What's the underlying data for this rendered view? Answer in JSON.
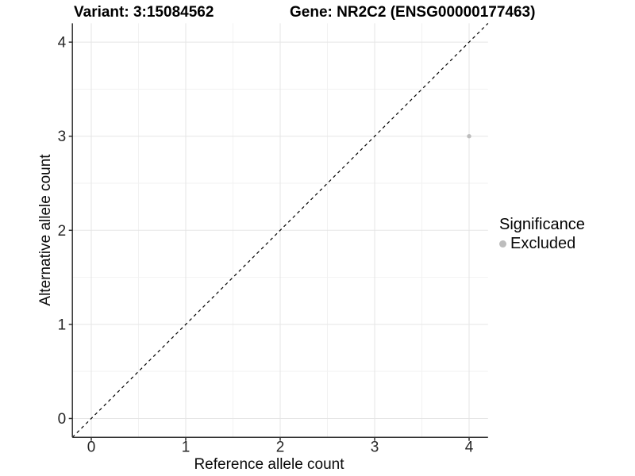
{
  "chart_data": {
    "type": "scatter",
    "title_left": "Variant: 3:15084562",
    "title_right": "Gene: NR2C2 (ENSG00000177463)",
    "xlabel": "Reference allele count",
    "ylabel": "Alternative allele count",
    "xlim": [
      -0.2,
      4.2
    ],
    "ylim": [
      -0.2,
      4.2
    ],
    "xticks": [
      0,
      1,
      2,
      3,
      4
    ],
    "yticks": [
      0,
      1,
      2,
      3,
      4
    ],
    "minor_ticks": [
      0.5,
      1.5,
      2.5,
      3.5
    ],
    "grid": true,
    "reference_line": {
      "meaning": "identity line y = x",
      "style": "dashed",
      "color": "#000000",
      "from": [
        -0.2,
        -0.2
      ],
      "to": [
        4.2,
        4.2
      ]
    },
    "series": [
      {
        "name": "Excluded",
        "color": "#bdbdbd",
        "points": [
          {
            "x": 4,
            "y": 3
          }
        ]
      }
    ],
    "legend": {
      "title": "Significance",
      "position": "right",
      "items": [
        {
          "label": "Excluded",
          "color": "#bdbdbd"
        }
      ]
    }
  }
}
